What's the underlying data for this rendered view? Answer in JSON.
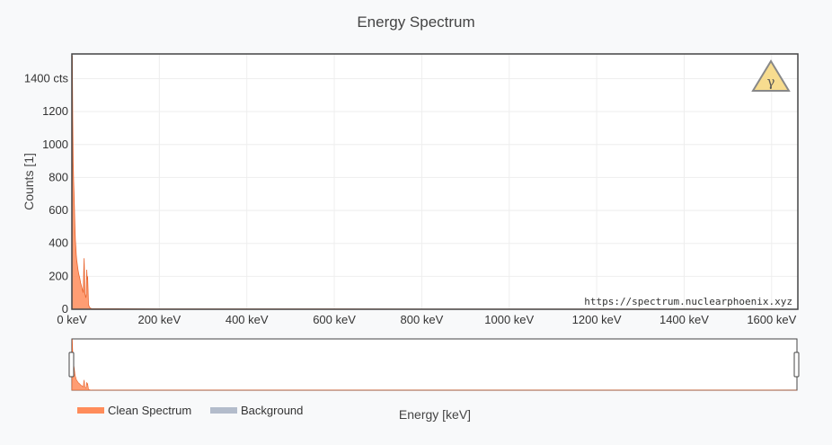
{
  "chart_data": {
    "type": "area",
    "title": "Energy Spectrum",
    "xlabel": "Energy [keV]",
    "ylabel": "Counts [1]",
    "xlim": [
      0,
      1660
    ],
    "ylim": [
      0,
      1550
    ],
    "x_ticks": [
      0,
      200,
      400,
      600,
      800,
      1000,
      1200,
      1400,
      1600
    ],
    "x_tick_labels": [
      "0 keV",
      "200 keV",
      "400 keV",
      "600 keV",
      "800 keV",
      "1000 keV",
      "1200 keV",
      "1400 keV",
      "1600 keV"
    ],
    "y_ticks": [
      0,
      200,
      400,
      600,
      800,
      1000,
      1200,
      1400
    ],
    "y_tick_labels": [
      "0",
      "200",
      "400",
      "600",
      "800",
      "1000",
      "1200",
      "1400 cts"
    ],
    "grid": true,
    "legend_position": "bottom-left",
    "series": [
      {
        "name": "Clean Spectrum",
        "color": "#ff8c5a",
        "x": [
          0,
          1,
          2,
          3,
          4,
          5,
          6,
          7,
          8,
          9,
          10,
          11,
          12,
          13,
          14,
          15,
          16,
          17,
          18,
          19,
          20,
          21,
          22,
          23,
          24,
          25,
          26,
          27,
          28,
          29,
          30,
          31,
          32,
          33,
          34,
          35,
          36,
          37,
          38,
          39,
          40,
          41,
          42,
          43,
          44,
          45,
          50,
          100,
          200,
          400,
          600,
          800,
          1000,
          1200,
          1400,
          1600,
          1660
        ],
        "y": [
          0,
          1540,
          1150,
          900,
          780,
          700,
          600,
          500,
          420,
          380,
          330,
          300,
          280,
          260,
          240,
          225,
          210,
          200,
          190,
          175,
          160,
          150,
          140,
          130,
          120,
          110,
          100,
          220,
          310,
          200,
          95,
          80,
          70,
          90,
          240,
          180,
          200,
          120,
          30,
          20,
          15,
          10,
          8,
          6,
          5,
          4,
          3,
          3,
          2,
          2,
          2,
          1,
          1,
          1,
          1,
          1,
          0
        ]
      },
      {
        "name": "Background",
        "color": "#b3bccb",
        "x": [],
        "y": []
      }
    ],
    "watermark": "https://spectrum.nuclearphoenix.xyz",
    "icon": "gamma-warning-icon"
  }
}
